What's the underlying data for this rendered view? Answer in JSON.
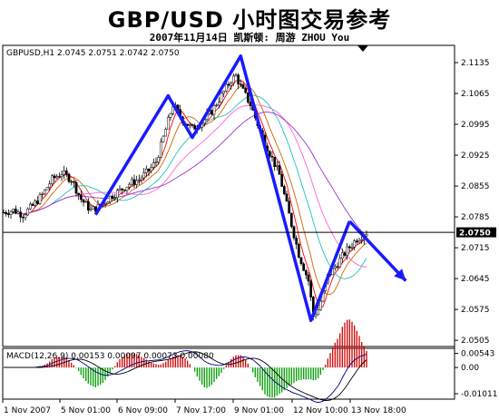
{
  "header": {
    "title": "GBP/USD 小时图交易参考",
    "subtitle": "2007年11月14日  凯斯顿: 周游 ZHOU You"
  },
  "chart_data": {
    "type": "candlestick",
    "main": {
      "info": "GBPUSD,H1 2.0745 2.0751 2.0742 2.0750",
      "y_ticks": [
        "2.1135",
        "2.1065",
        "2.0995",
        "2.0925",
        "2.0855",
        "2.0785",
        "2.0715",
        "2.0645",
        "2.0575",
        "2.0505"
      ],
      "ylim": [
        2.0495,
        2.117
      ],
      "current_price": "2.0750",
      "price_path": [
        [
          0,
          2.0795
        ],
        [
          4,
          2.08
        ],
        [
          8,
          2.079
        ],
        [
          12,
          2.081
        ],
        [
          16,
          2.0835
        ],
        [
          20,
          2.087
        ],
        [
          24,
          2.0885
        ],
        [
          28,
          2.087
        ],
        [
          32,
          2.0825
        ],
        [
          36,
          2.08
        ],
        [
          40,
          2.081
        ],
        [
          44,
          2.083
        ],
        [
          48,
          2.0845
        ],
        [
          52,
          2.086
        ],
        [
          56,
          2.087
        ],
        [
          60,
          2.089
        ],
        [
          63,
          2.091
        ],
        [
          66,
          2.0965
        ],
        [
          70,
          2.104
        ],
        [
          74,
          2.1005
        ],
        [
          78,
          2.0985
        ],
        [
          82,
          2.1
        ],
        [
          86,
          2.1025
        ],
        [
          90,
          2.106
        ],
        [
          94,
          2.1095
        ],
        [
          96,
          2.1105
        ],
        [
          98,
          2.108
        ],
        [
          102,
          2.104
        ],
        [
          106,
          2.098
        ],
        [
          110,
          2.093
        ],
        [
          114,
          2.088
        ],
        [
          118,
          2.079
        ],
        [
          122,
          2.07
        ],
        [
          126,
          2.064
        ],
        [
          128,
          2.056
        ],
        [
          130,
          2.0575
        ],
        [
          134,
          2.065
        ],
        [
          138,
          2.068
        ],
        [
          142,
          2.071
        ],
        [
          146,
          2.0735
        ],
        [
          150,
          2.075
        ]
      ],
      "trend_lines": [
        [
          [
            38,
            2.079
          ],
          [
            68,
            2.106
          ],
          [
            78,
            2.0965
          ],
          [
            98,
            2.115
          ],
          [
            127,
            2.055
          ],
          [
            143,
            2.0775
          ]
        ]
      ],
      "forecast_arrow": [
        [
          143,
          2.0775
        ],
        [
          155,
          2.064
        ]
      ]
    },
    "indicator": {
      "label": "MACD(12,26,9) 0.00153 0.00097 0.00073 0.00080",
      "y_ticks": [
        "0.00543",
        "0.00",
        "-0.01011"
      ],
      "ylim": [
        -0.0115,
        0.006
      ]
    },
    "x_ticks": [
      "1 Nov 2007",
      "5 Nov 01:00",
      "6 Nov 09:00",
      "7 Nov 17:00",
      "9 Nov 01:00",
      "12 Nov 10:00",
      "13 Nov 18:00"
    ]
  }
}
